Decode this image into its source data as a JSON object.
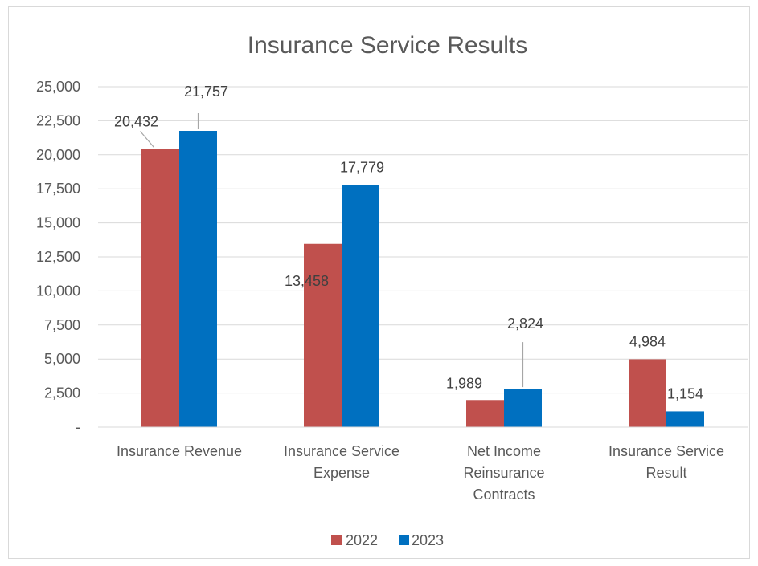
{
  "chart_data": {
    "type": "bar",
    "title": "Insurance Service Results",
    "categories": [
      [
        "Insurance Revenue"
      ],
      [
        "Insurance Service",
        "Expense"
      ],
      [
        "Net Income",
        "Reinsurance",
        "Contracts"
      ],
      [
        "Insurance Service",
        "Result"
      ]
    ],
    "series": [
      {
        "name": "2022",
        "color": "#c0504d",
        "values": [
          20432,
          13458,
          1989,
          4984
        ],
        "labels": [
          "20,432",
          "13,458",
          "1,989",
          "4,984"
        ]
      },
      {
        "name": "2023",
        "color": "#0070c0",
        "values": [
          21757,
          17779,
          2824,
          1154
        ],
        "labels": [
          "21,757",
          "17,779",
          "2,824",
          "1,154"
        ]
      }
    ],
    "ylim": [
      0,
      25000
    ],
    "yticks": [
      0,
      2500,
      5000,
      7500,
      10000,
      12500,
      15000,
      17500,
      20000,
      22500,
      25000
    ],
    "ytick_labels": [
      "-",
      "2,500",
      "5,000",
      "7,500",
      "10,000",
      "12,500",
      "15,000",
      "17,500",
      "20,000",
      "22,500",
      "25,000"
    ],
    "grid": true,
    "legend_position": "bottom",
    "xlabel": "",
    "ylabel": ""
  }
}
